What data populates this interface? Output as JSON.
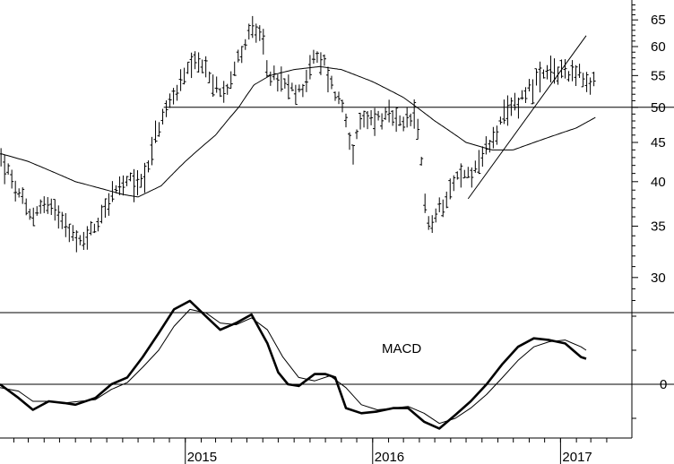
{
  "chart_data": [
    {
      "type": "ohlc",
      "title": "",
      "y_axis": {
        "ticks": [
          30,
          35,
          40,
          45,
          50,
          55,
          60,
          65
        ],
        "ylim": [
          27,
          69
        ],
        "scale": "log",
        "position": "right"
      },
      "x_axis": {
        "start": "2014-01-05",
        "end": "2017-05-20",
        "ticks": [
          "2014-02",
          "2014-03",
          "2014-04",
          "2014-05",
          "2014-06",
          "2014-07",
          "2014-08",
          "2014-09",
          "2014-10",
          "2014-11",
          "2014-12",
          "2015-01",
          "2015-02",
          "2015-03",
          "2015-04",
          "2015-05",
          "2015-06",
          "2015-07",
          "2015-08",
          "2015-09",
          "2015-10",
          "2015-11",
          "2015-12",
          "2016-01",
          "2016-02",
          "2016-03",
          "2016-04",
          "2016-05",
          "2016-06",
          "2016-07",
          "2016-08",
          "2016-09",
          "2016-10",
          "2016-11",
          "2016-12",
          "2017-01",
          "2017-02",
          "2017-03",
          "2017-04"
        ],
        "year_labels": [
          {
            "date": "2015-01-01",
            "label": "2015"
          },
          {
            "date": "2016-01-01",
            "label": "2016"
          },
          {
            "date": "2017-01-01",
            "label": "2017"
          }
        ]
      },
      "price_anchors": [
        [
          "2014-01-07",
          43.0
        ],
        [
          "2014-02-05",
          39.0
        ],
        [
          "2014-03-05",
          36.0
        ],
        [
          "2014-04-01",
          37.5
        ],
        [
          "2014-05-10",
          36.0
        ],
        [
          "2014-06-05",
          33.0
        ],
        [
          "2014-07-10",
          35.0
        ],
        [
          "2014-08-10",
          38.5
        ],
        [
          "2014-09-15",
          40.0
        ],
        [
          "2014-10-10",
          40.0
        ],
        [
          "2014-11-10",
          47.0
        ],
        [
          "2014-12-10",
          52.0
        ],
        [
          "2015-01-10",
          56.0
        ],
        [
          "2015-02-05",
          57.0
        ],
        [
          "2015-02-25",
          53.0
        ],
        [
          "2015-03-20",
          53.0
        ],
        [
          "2015-04-15",
          58.0
        ],
        [
          "2015-05-10",
          63.5
        ],
        [
          "2015-05-25",
          62.0
        ],
        [
          "2015-06-15",
          55.0
        ],
        [
          "2015-07-20",
          53.0
        ],
        [
          "2015-08-10",
          52.0
        ],
        [
          "2015-09-10",
          58.0
        ],
        [
          "2015-09-30",
          57.0
        ],
        [
          "2015-10-15",
          53.0
        ],
        [
          "2015-11-05",
          50.0
        ],
        [
          "2015-11-25",
          43.5
        ],
        [
          "2015-12-10",
          48.0
        ],
        [
          "2016-01-10",
          48.5
        ],
        [
          "2016-02-05",
          48.5
        ],
        [
          "2016-03-01",
          47.0
        ],
        [
          "2016-03-20",
          49.0
        ],
        [
          "2016-04-01",
          45.0
        ],
        [
          "2016-04-12",
          38.0
        ],
        [
          "2016-04-22",
          34.5
        ],
        [
          "2016-05-10",
          37.0
        ],
        [
          "2016-06-10",
          40.5
        ],
        [
          "2016-07-10",
          41.0
        ],
        [
          "2016-08-10",
          44.0
        ],
        [
          "2016-09-10",
          48.0
        ],
        [
          "2016-10-10",
          51.0
        ],
        [
          "2016-11-05",
          53.5
        ],
        [
          "2016-12-05",
          55.0
        ],
        [
          "2017-01-05",
          56.0
        ],
        [
          "2017-02-05",
          55.5
        ],
        [
          "2017-02-25",
          52.5
        ],
        [
          "2017-03-10",
          54.5
        ]
      ],
      "moving_average": [
        [
          "2014-01-07",
          43.5
        ],
        [
          "2014-03-01",
          42.5
        ],
        [
          "2014-06-01",
          40.0
        ],
        [
          "2014-09-01",
          38.5
        ],
        [
          "2014-10-01",
          38.2
        ],
        [
          "2014-11-15",
          39.5
        ],
        [
          "2015-01-01",
          42.5
        ],
        [
          "2015-03-01",
          46.0
        ],
        [
          "2015-04-15",
          50.0
        ],
        [
          "2015-05-15",
          53.5
        ],
        [
          "2015-06-15",
          55.0
        ],
        [
          "2015-08-01",
          56.0
        ],
        [
          "2015-09-20",
          56.5
        ],
        [
          "2015-11-01",
          56.0
        ],
        [
          "2016-01-01",
          54.0
        ],
        [
          "2016-03-01",
          51.5
        ],
        [
          "2016-05-01",
          48.0
        ],
        [
          "2016-07-01",
          45.0
        ],
        [
          "2016-08-20",
          44.0
        ],
        [
          "2016-10-01",
          44.0
        ],
        [
          "2016-12-01",
          45.5
        ],
        [
          "2017-02-01",
          47.0
        ],
        [
          "2017-03-10",
          48.5
        ]
      ],
      "horizontal_line": {
        "value": 50,
        "from": "2014-11-20",
        "to": "2017-05-20"
      },
      "trendline": {
        "from": [
          "2016-07-05",
          38.0
        ],
        "to": [
          "2017-02-20",
          62.0
        ]
      }
    },
    {
      "type": "line",
      "title": "MACD",
      "zero_label": "0",
      "zero_line": 0,
      "ylim": [
        -1.8,
        2.6
      ],
      "series": [
        {
          "style": "thick",
          "values": [
            [
              "2014-01-05",
              0.0
            ],
            [
              "2014-02-10",
              -0.4
            ],
            [
              "2014-03-10",
              -0.75
            ],
            [
              "2014-04-10",
              -0.5
            ],
            [
              "2014-05-10",
              -0.55
            ],
            [
              "2014-06-01",
              -0.6
            ],
            [
              "2014-07-10",
              -0.4
            ],
            [
              "2014-08-10",
              0.0
            ],
            [
              "2014-09-10",
              0.2
            ],
            [
              "2014-10-10",
              0.8
            ],
            [
              "2014-11-10",
              1.5
            ],
            [
              "2014-12-10",
              2.2
            ],
            [
              "2015-01-10",
              2.45
            ],
            [
              "2015-02-10",
              2.0
            ],
            [
              "2015-03-10",
              1.6
            ],
            [
              "2015-04-10",
              1.8
            ],
            [
              "2015-05-10",
              2.05
            ],
            [
              "2015-06-10",
              1.2
            ],
            [
              "2015-07-01",
              0.35
            ],
            [
              "2015-07-20",
              0.0
            ],
            [
              "2015-08-10",
              -0.05
            ],
            [
              "2015-09-10",
              0.3
            ],
            [
              "2015-10-01",
              0.3
            ],
            [
              "2015-10-20",
              0.2
            ],
            [
              "2015-11-10",
              -0.7
            ],
            [
              "2015-12-10",
              -0.85
            ],
            [
              "2016-01-10",
              -0.8
            ],
            [
              "2016-02-10",
              -0.7
            ],
            [
              "2016-03-10",
              -0.7
            ],
            [
              "2016-04-10",
              -1.1
            ],
            [
              "2016-05-10",
              -1.3
            ],
            [
              "2016-06-10",
              -0.9
            ],
            [
              "2016-07-10",
              -0.5
            ],
            [
              "2016-08-10",
              0.0
            ],
            [
              "2016-09-10",
              0.6
            ],
            [
              "2016-10-10",
              1.1
            ],
            [
              "2016-11-10",
              1.35
            ],
            [
              "2016-12-10",
              1.3
            ],
            [
              "2017-01-10",
              1.2
            ],
            [
              "2017-02-10",
              0.8
            ],
            [
              "2017-02-20",
              0.75
            ]
          ]
        },
        {
          "style": "thin",
          "values": [
            [
              "2014-01-05",
              -0.1
            ],
            [
              "2014-02-10",
              -0.2
            ],
            [
              "2014-03-10",
              -0.5
            ],
            [
              "2014-04-10",
              -0.5
            ],
            [
              "2014-05-10",
              -0.55
            ],
            [
              "2014-06-10",
              -0.5
            ],
            [
              "2014-07-10",
              -0.45
            ],
            [
              "2014-08-10",
              -0.15
            ],
            [
              "2014-09-10",
              0.05
            ],
            [
              "2014-10-10",
              0.5
            ],
            [
              "2014-11-10",
              1.0
            ],
            [
              "2014-12-10",
              1.7
            ],
            [
              "2015-01-10",
              2.2
            ],
            [
              "2015-02-10",
              2.1
            ],
            [
              "2015-03-10",
              1.8
            ],
            [
              "2015-04-10",
              1.75
            ],
            [
              "2015-05-10",
              1.95
            ],
            [
              "2015-06-10",
              1.6
            ],
            [
              "2015-07-10",
              0.8
            ],
            [
              "2015-08-10",
              0.2
            ],
            [
              "2015-09-10",
              0.1
            ],
            [
              "2015-10-10",
              0.25
            ],
            [
              "2015-11-10",
              -0.1
            ],
            [
              "2015-12-10",
              -0.6
            ],
            [
              "2016-01-10",
              -0.75
            ],
            [
              "2016-02-10",
              -0.7
            ],
            [
              "2016-03-10",
              -0.65
            ],
            [
              "2016-04-10",
              -0.85
            ],
            [
              "2016-05-10",
              -1.15
            ],
            [
              "2016-06-10",
              -1.0
            ],
            [
              "2016-07-10",
              -0.7
            ],
            [
              "2016-08-10",
              -0.3
            ],
            [
              "2016-09-10",
              0.2
            ],
            [
              "2016-10-10",
              0.7
            ],
            [
              "2016-11-10",
              1.1
            ],
            [
              "2016-12-10",
              1.25
            ],
            [
              "2017-01-10",
              1.3
            ],
            [
              "2017-02-10",
              1.1
            ],
            [
              "2017-02-20",
              1.0
            ]
          ]
        }
      ]
    }
  ],
  "colors": {
    "line": "#000000",
    "background": "#ffffff"
  }
}
